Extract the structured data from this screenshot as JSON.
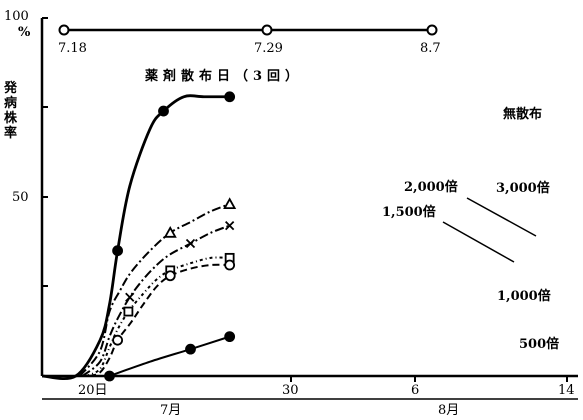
{
  "chart_data": {
    "type": "line",
    "title": "",
    "ylabel": "発病株率",
    "y_unit": "%",
    "y_ticks": [
      "50",
      "100"
    ],
    "ylim": [
      0,
      100
    ],
    "x_ticks": [
      "20日",
      "30",
      "6",
      "14"
    ],
    "x_periods": [
      "7月",
      "8月"
    ],
    "x": [
      "7月20日",
      "7月30日",
      "8月6日",
      "8月14日"
    ],
    "spray": {
      "label": "薬剤散布日（3回）",
      "dates": [
        "7.18",
        "7.29",
        "8.7"
      ]
    },
    "series": [
      {
        "name": "無散布",
        "style": "solid",
        "marker": "filled-circle",
        "points": [
          [
            0,
            0
          ],
          [
            2.5,
            0
          ],
          [
            4.3,
            10
          ],
          [
            5.0,
            20
          ],
          [
            5.6,
            35
          ],
          [
            6.5,
            53
          ],
          [
            8,
            69
          ],
          [
            9,
            74
          ],
          [
            10.5,
            78
          ],
          [
            12,
            78
          ],
          [
            13.9,
            78
          ]
        ],
        "marked": [
          4,
          7,
          10
        ]
      },
      {
        "name": "3,000倍",
        "style": "dashdot",
        "marker": "open-triangle",
        "points": [
          [
            2.8,
            0
          ],
          [
            4.3,
            7
          ],
          [
            5.0,
            18
          ],
          [
            5.8,
            24
          ],
          [
            6.6,
            29
          ],
          [
            8,
            35
          ],
          [
            9.5,
            40
          ],
          [
            11,
            43
          ],
          [
            12.5,
            46
          ],
          [
            13.9,
            48
          ]
        ],
        "marked": [
          6,
          9
        ]
      },
      {
        "name": "2,000倍",
        "style": "dashdot",
        "marker": "cross",
        "points": [
          [
            3.0,
            0
          ],
          [
            4.3,
            4
          ],
          [
            5.0,
            11
          ],
          [
            5.6,
            16
          ],
          [
            6.5,
            22
          ],
          [
            7.5,
            27
          ],
          [
            8.5,
            31
          ],
          [
            9.5,
            34
          ],
          [
            11,
            37
          ],
          [
            12.5,
            40
          ],
          [
            13.9,
            42
          ]
        ],
        "marked": [
          4,
          8,
          10
        ]
      },
      {
        "name": "1,500倍",
        "style": "dotdash",
        "marker": "open-square",
        "points": [
          [
            3.3,
            0
          ],
          [
            4.3,
            2
          ],
          [
            5.0,
            8
          ],
          [
            5.6,
            13
          ],
          [
            6.4,
            18
          ],
          [
            7.5,
            23
          ],
          [
            8.5,
            27
          ],
          [
            9.5,
            29.5
          ],
          [
            11,
            31.5
          ],
          [
            12.5,
            33
          ],
          [
            13.9,
            33
          ]
        ],
        "marked": [
          4,
          7,
          10
        ]
      },
      {
        "name": "1,000倍",
        "style": "dashed",
        "marker": "open-circle",
        "points": [
          [
            3.5,
            0
          ],
          [
            4.3,
            1
          ],
          [
            5.0,
            5
          ],
          [
            5.6,
            10
          ],
          [
            6.6,
            15
          ],
          [
            7.5,
            20
          ],
          [
            8.5,
            25
          ],
          [
            9.5,
            28
          ],
          [
            11,
            30
          ],
          [
            12.5,
            31
          ],
          [
            13.9,
            31
          ]
        ],
        "marked": [
          3,
          7,
          10
        ]
      },
      {
        "name": "500倍",
        "style": "solid",
        "marker": "filled-circle",
        "points": [
          [
            5.0,
            0
          ],
          [
            8.0,
            4
          ],
          [
            11.0,
            7.5
          ],
          [
            13.9,
            11
          ]
        ],
        "marked": [
          0,
          2,
          3
        ]
      }
    ]
  }
}
